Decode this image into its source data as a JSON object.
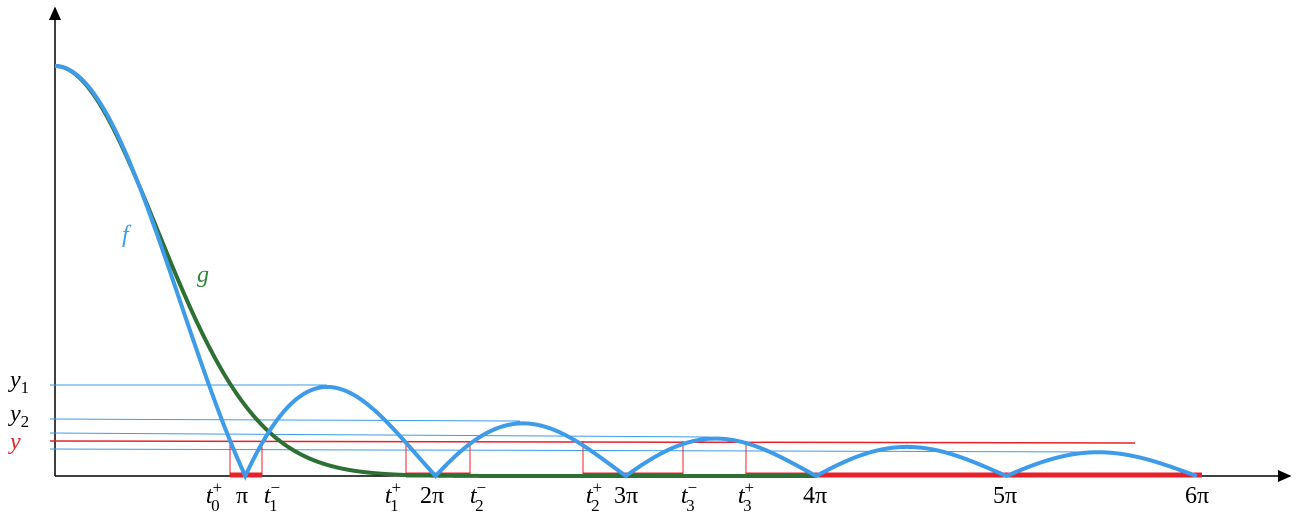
{
  "labels": {
    "f": "f",
    "g": "g"
  },
  "y_labels": [
    {
      "base": "y",
      "sub": "1"
    },
    {
      "base": "y",
      "sub": "2"
    },
    {
      "base": "y"
    }
  ],
  "x_labels": [
    {
      "base": "t",
      "sup": "+",
      "sub": "0"
    },
    {
      "base": "π"
    },
    {
      "base": "t",
      "sup": "−",
      "sub": "1"
    },
    {
      "base": "t",
      "sup": "+",
      "sub": "1"
    },
    {
      "base": "2π"
    },
    {
      "base": "t",
      "sup": "−",
      "sub": "2"
    },
    {
      "base": "t",
      "sup": "+",
      "sub": "2"
    },
    {
      "base": "3π"
    },
    {
      "base": "t",
      "sup": "−",
      "sub": "3"
    },
    {
      "base": "t",
      "sup": "+",
      "sub": "3"
    },
    {
      "base": "4π"
    },
    {
      "base": "5π"
    },
    {
      "base": "6π"
    }
  ]
}
